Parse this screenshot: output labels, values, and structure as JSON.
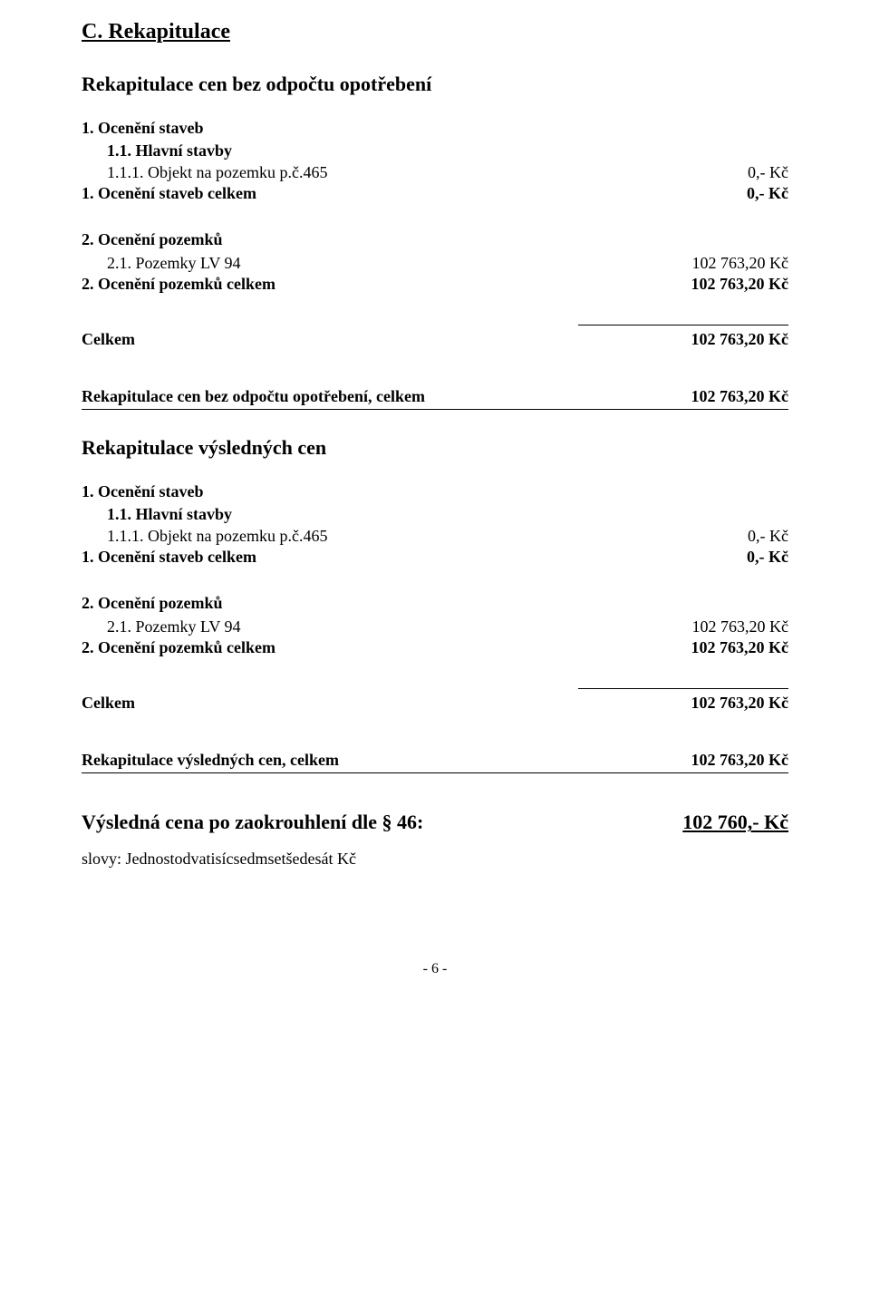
{
  "section": {
    "title": "C. Rekapitulace"
  },
  "recap1": {
    "title": "Rekapitulace cen bez odpočtu opotřebení",
    "staveb": {
      "heading": "1. Ocenění staveb",
      "hlavni": "1.1. Hlavní stavby",
      "objekt_label": "1.1.1. Objekt na pozemku p.č.465",
      "objekt_value": "0,- Kč",
      "celkem_label": "1. Ocenění staveb celkem",
      "celkem_value": "0,- Kč"
    },
    "pozemku": {
      "heading": "2. Ocenění pozemků",
      "item_label": "2.1. Pozemky LV 94",
      "item_value": "102 763,20 Kč",
      "celkem_label": "2. Ocenění pozemků celkem",
      "celkem_value": "102 763,20 Kč"
    },
    "celkem": {
      "label": "Celkem",
      "value": "102 763,20 Kč"
    },
    "total_row": {
      "label": "Rekapitulace cen bez odpočtu opotřebení, celkem",
      "value": "102 763,20 Kč"
    }
  },
  "recap2": {
    "title": "Rekapitulace výsledných cen",
    "staveb": {
      "heading": "1. Ocenění staveb",
      "hlavni": "1.1. Hlavní stavby",
      "objekt_label": "1.1.1. Objekt na pozemku p.č.465",
      "objekt_value": "0,- Kč",
      "celkem_label": "1. Ocenění staveb celkem",
      "celkem_value": "0,- Kč"
    },
    "pozemku": {
      "heading": "2. Ocenění pozemků",
      "item_label": "2.1. Pozemky LV 94",
      "item_value": "102 763,20 Kč",
      "celkem_label": "2. Ocenění pozemků celkem",
      "celkem_value": "102 763,20 Kč"
    },
    "celkem": {
      "label": "Celkem",
      "value": "102 763,20 Kč"
    },
    "total_row": {
      "label": "Rekapitulace výsledných cen, celkem",
      "value": "102 763,20 Kč"
    }
  },
  "result": {
    "label": "Výsledná cena po zaokrouhlení dle § 46:",
    "value": "102 760,- Kč"
  },
  "words": "slovy: Jednostodvatisícsedmsetšedesát Kč",
  "page_number": "- 6 -"
}
